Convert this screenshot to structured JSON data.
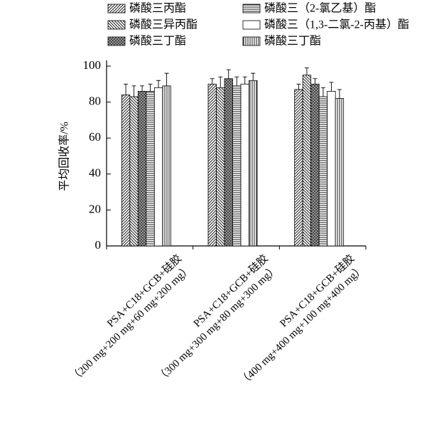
{
  "chart_data": {
    "type": "bar",
    "y_label": "平均回收率/%",
    "categories": [
      [
        "PSA+C18+GCB+硅胶",
        "（200 mg+200 mg+60 mg+200 mg）"
      ],
      [
        "PSA+C18+GCB+硅胶",
        "（300 mg+300 mg+80 mg+300 mg）"
      ],
      [
        "PSA+C18+GCB+硅胶",
        "（400 mg+400 mg+100 mg+400 mg）"
      ]
    ],
    "series": [
      {
        "name": "磷酸三丙酯",
        "pattern": "diagonal",
        "values": [
          84,
          90,
          87
        ],
        "errors": [
          6,
          3,
          3
        ]
      },
      {
        "name": "磷酸三异丙酯",
        "pattern": "back-diagonal",
        "values": [
          83,
          88,
          95
        ],
        "errors": [
          6,
          6,
          4
        ]
      },
      {
        "name": "磷酸三丁酯",
        "pattern": "dots",
        "values": [
          86,
          93,
          90
        ],
        "errors": [
          3,
          5,
          3
        ]
      },
      {
        "name": "磷酸三（2-氯乙基）酯",
        "pattern": "horizontal",
        "values": [
          86,
          89,
          83
        ],
        "errors": [
          4,
          5,
          5
        ]
      },
      {
        "name": "磷酸三（1,3-二氯-2-丙基）酯",
        "pattern": "none",
        "values": [
          88,
          90,
          86
        ],
        "errors": [
          4,
          4,
          5
        ]
      },
      {
        "name": "磷酸三丁酯",
        "pattern": "vertical",
        "values": [
          89,
          92,
          82
        ],
        "errors": [
          7,
          4,
          5
        ]
      }
    ],
    "ylim": [
      0,
      100
    ],
    "yticks": [
      0,
      20,
      40,
      60,
      80,
      100
    ],
    "legend": "top"
  }
}
